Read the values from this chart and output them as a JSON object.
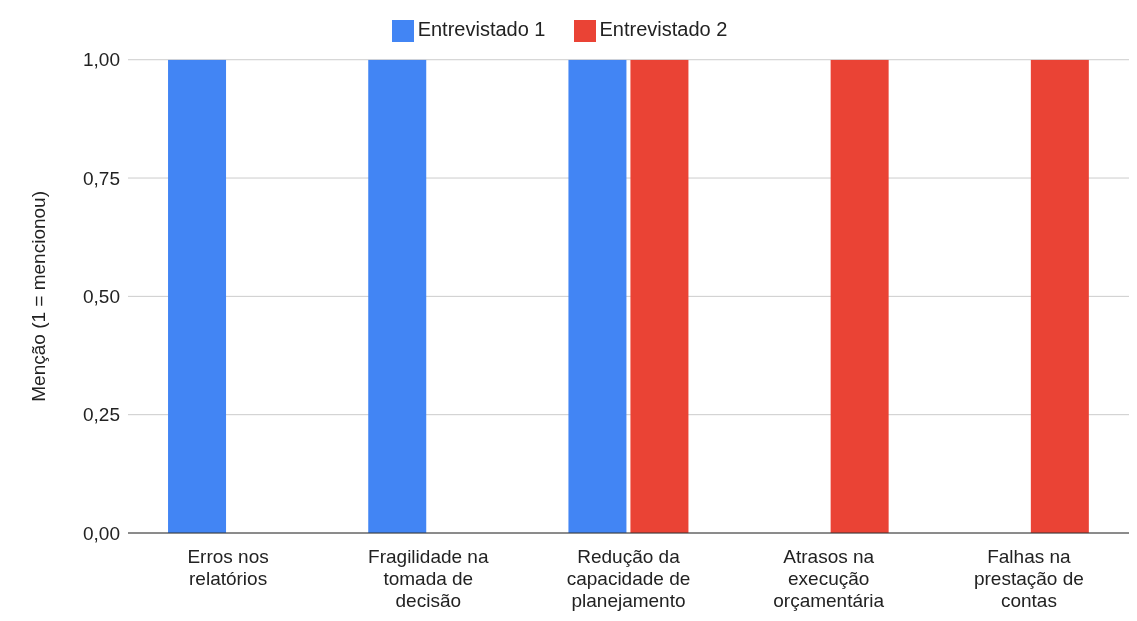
{
  "chart_data": {
    "type": "bar",
    "ylabel": "Menção (1 = mencionou)",
    "categories": [
      "Erros nos relatórios",
      "Fragilidade na tomada de decisão",
      "Redução da capacidade de planejamento",
      "Atrasos na execução orçamentária",
      "Falhas na prestação de contas"
    ],
    "series": [
      {
        "name": "Entrevistado 1",
        "color": "#4285f4",
        "values": [
          1,
          1,
          1,
          0,
          0
        ]
      },
      {
        "name": "Entrevistado 2",
        "color": "#ea4335",
        "values": [
          0,
          0,
          1,
          1,
          1
        ]
      }
    ],
    "ylim": [
      0,
      1
    ],
    "yticks": [
      {
        "value": 0,
        "label": "0,00"
      },
      {
        "value": 0.25,
        "label": "0,25"
      },
      {
        "value": 0.5,
        "label": "0,50"
      },
      {
        "value": 0.75,
        "label": "0,75"
      },
      {
        "value": 1,
        "label": "1,00"
      }
    ],
    "grid": "y",
    "legend": "top"
  }
}
